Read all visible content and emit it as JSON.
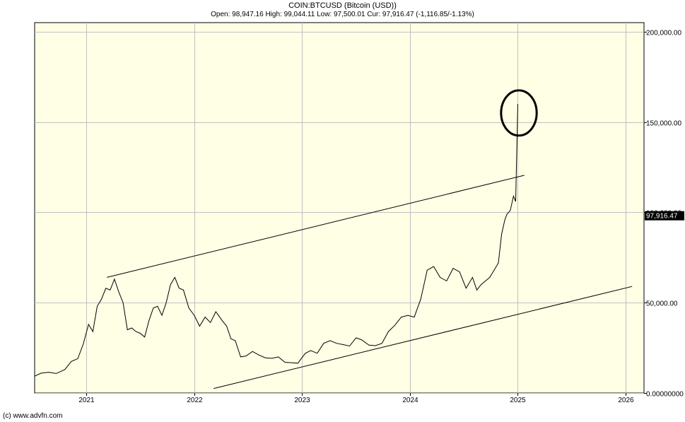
{
  "header": {
    "title": "COIN:BTCUSD (Bitcoin (USD))",
    "ohlc": "Open: 98,947.16 High: 99,044.11 Low: 97,500.01 Cur: 97,916.47 (-1,116.85/-1.13%)"
  },
  "footer": {
    "copyright": "(c) www.advfn.com"
  },
  "colors": {
    "plot_bg": "#ffffe5",
    "grid": "#c0c0c0",
    "line": "#000000",
    "badge_bg": "#000000",
    "badge_fg": "#ffffff"
  },
  "chart_data": {
    "type": "line",
    "title": "COIN:BTCUSD (Bitcoin (USD))",
    "xlabel": "",
    "ylabel": "",
    "xlim": [
      2020.52,
      2026.17
    ],
    "ylim": [
      0,
      205000
    ],
    "grid": true,
    "x_ticks": [
      {
        "value": 2021,
        "label": "2021"
      },
      {
        "value": 2022,
        "label": "2022"
      },
      {
        "value": 2023,
        "label": "2023"
      },
      {
        "value": 2024,
        "label": "2024"
      },
      {
        "value": 2025,
        "label": "2025"
      },
      {
        "value": 2026,
        "label": "2026"
      }
    ],
    "y_ticks": [
      {
        "value": 200000,
        "label": "200,000.00"
      },
      {
        "value": 150000,
        "label": "150,000.00"
      },
      {
        "value": 100000,
        "label": "100,000.00"
      },
      {
        "value": 50000,
        "label": "50,000.00"
      },
      {
        "value": 0,
        "label": "0.00000000"
      }
    ],
    "current": {
      "value": 97916.47,
      "label": "97,916.47"
    },
    "series": [
      {
        "points": [
          [
            2020.52,
            9300
          ],
          [
            2020.58,
            11000
          ],
          [
            2020.65,
            11500
          ],
          [
            2020.72,
            10800
          ],
          [
            2020.8,
            13000
          ],
          [
            2020.86,
            17500
          ],
          [
            2020.92,
            19000
          ],
          [
            2020.97,
            27000
          ],
          [
            2021.02,
            38000
          ],
          [
            2021.06,
            34000
          ],
          [
            2021.1,
            48000
          ],
          [
            2021.14,
            52000
          ],
          [
            2021.18,
            58000
          ],
          [
            2021.22,
            57000
          ],
          [
            2021.26,
            63000
          ],
          [
            2021.3,
            56000
          ],
          [
            2021.34,
            50000
          ],
          [
            2021.38,
            35000
          ],
          [
            2021.42,
            36000
          ],
          [
            2021.46,
            34000
          ],
          [
            2021.5,
            33000
          ],
          [
            2021.54,
            31000
          ],
          [
            2021.58,
            40000
          ],
          [
            2021.62,
            47000
          ],
          [
            2021.66,
            48000
          ],
          [
            2021.7,
            43000
          ],
          [
            2021.74,
            50000
          ],
          [
            2021.78,
            60000
          ],
          [
            2021.82,
            64000
          ],
          [
            2021.86,
            58000
          ],
          [
            2021.9,
            57000
          ],
          [
            2021.95,
            47000
          ],
          [
            2022.0,
            43000
          ],
          [
            2022.05,
            37000
          ],
          [
            2022.1,
            42000
          ],
          [
            2022.15,
            39000
          ],
          [
            2022.2,
            45000
          ],
          [
            2022.26,
            40000
          ],
          [
            2022.3,
            37000
          ],
          [
            2022.34,
            30000
          ],
          [
            2022.38,
            29000
          ],
          [
            2022.43,
            20000
          ],
          [
            2022.48,
            20500
          ],
          [
            2022.54,
            23000
          ],
          [
            2022.6,
            21000
          ],
          [
            2022.66,
            19500
          ],
          [
            2022.72,
            19200
          ],
          [
            2022.78,
            20000
          ],
          [
            2022.84,
            17000
          ],
          [
            2022.9,
            16800
          ],
          [
            2022.96,
            16500
          ],
          [
            2023.03,
            22000
          ],
          [
            2023.08,
            23500
          ],
          [
            2023.14,
            22000
          ],
          [
            2023.2,
            27500
          ],
          [
            2023.26,
            29000
          ],
          [
            2023.32,
            27500
          ],
          [
            2023.38,
            26800
          ],
          [
            2023.44,
            26000
          ],
          [
            2023.5,
            30500
          ],
          [
            2023.55,
            29500
          ],
          [
            2023.62,
            26500
          ],
          [
            2023.68,
            26200
          ],
          [
            2023.74,
            27500
          ],
          [
            2023.8,
            34000
          ],
          [
            2023.86,
            37500
          ],
          [
            2023.92,
            42000
          ],
          [
            2023.98,
            43000
          ],
          [
            2024.04,
            42000
          ],
          [
            2024.1,
            52000
          ],
          [
            2024.16,
            68000
          ],
          [
            2024.22,
            70000
          ],
          [
            2024.28,
            64000
          ],
          [
            2024.34,
            62000
          ],
          [
            2024.4,
            69000
          ],
          [
            2024.46,
            67000
          ],
          [
            2024.52,
            58000
          ],
          [
            2024.58,
            64000
          ],
          [
            2024.62,
            57000
          ],
          [
            2024.66,
            60000
          ],
          [
            2024.7,
            62000
          ],
          [
            2024.74,
            64000
          ],
          [
            2024.78,
            68000
          ],
          [
            2024.82,
            72000
          ],
          [
            2024.85,
            88000
          ],
          [
            2024.88,
            96000
          ],
          [
            2024.9,
            99000
          ],
          [
            2024.93,
            101000
          ],
          [
            2024.96,
            109000
          ],
          [
            2024.98,
            106000
          ]
        ]
      }
    ],
    "annotations": {
      "trendlines": [
        {
          "x1": 2021.19,
          "y1": 64000,
          "x2": 2025.06,
          "y2": 120500
        },
        {
          "x1": 2022.18,
          "y1": 2500,
          "x2": 2026.06,
          "y2": 59000
        },
        {
          "x1": 2024.98,
          "y1": 106000,
          "x2": 2025.0,
          "y2": 160000
        }
      ],
      "circle": {
        "cx": 2025.01,
        "cy": 155000,
        "rx_years": 0.165,
        "ry_value": 12500
      }
    }
  }
}
